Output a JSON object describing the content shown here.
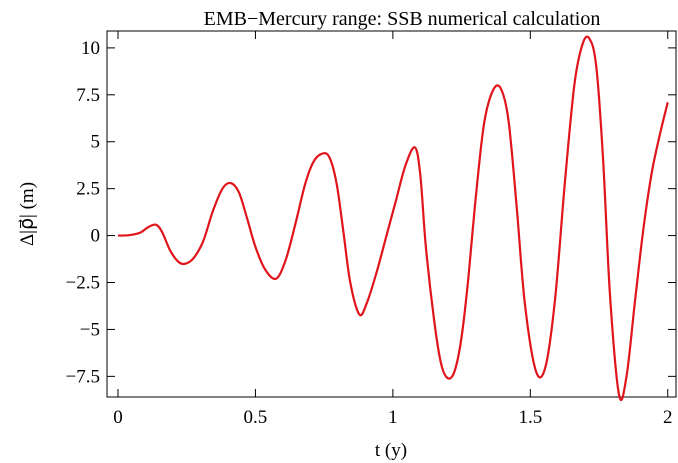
{
  "chart_data": {
    "type": "line",
    "title": "EMB−Mercury range: SSB numerical calculation",
    "xlabel": "t (y)",
    "ylabel": "Δ|ρ⃗| (m)",
    "xlim": [
      -0.04,
      2.03
    ],
    "ylim": [
      -8.6,
      10.9
    ],
    "grid": false,
    "legend": "none",
    "line_color": "#e0141b",
    "x_ticks": [
      {
        "value": 0,
        "label": "0"
      },
      {
        "value": 0.5,
        "label": "0.5"
      },
      {
        "value": 1,
        "label": "1"
      },
      {
        "value": 1.5,
        "label": "1.5"
      },
      {
        "value": 2,
        "label": "2"
      }
    ],
    "y_ticks": [
      {
        "value": -7.5,
        "label": "−7.5"
      },
      {
        "value": -5,
        "label": "−5"
      },
      {
        "value": -2.5,
        "label": "−2.5"
      },
      {
        "value": 0,
        "label": "0"
      },
      {
        "value": 2.5,
        "label": "2.5"
      },
      {
        "value": 5,
        "label": "5"
      },
      {
        "value": 7.5,
        "label": "7.5"
      },
      {
        "value": 10,
        "label": "10"
      }
    ],
    "series": [
      {
        "x": [
          0,
          0.04,
          0.08,
          0.11,
          0.138,
          0.16,
          0.19,
          0.22,
          0.245,
          0.275,
          0.31,
          0.345,
          0.38,
          0.41,
          0.44,
          0.47,
          0.5,
          0.535,
          0.575,
          0.61,
          0.645,
          0.68,
          0.71,
          0.74,
          0.768,
          0.795,
          0.82,
          0.845,
          0.878,
          0.905,
          0.94,
          0.975,
          1.01,
          1.045,
          1.08,
          1.1,
          1.12,
          1.15,
          1.175,
          1.2,
          1.225,
          1.25,
          1.275,
          1.3,
          1.33,
          1.36,
          1.39,
          1.42,
          1.45,
          1.48,
          1.52,
          1.555,
          1.59,
          1.625,
          1.66,
          1.69,
          1.715,
          1.74,
          1.765,
          1.79,
          1.823,
          1.85,
          1.88,
          1.91,
          1.94,
          1.97,
          2.0
        ],
        "y": [
          0,
          0.02,
          0.15,
          0.45,
          0.58,
          0.2,
          -0.8,
          -1.4,
          -1.5,
          -1.2,
          -0.3,
          1.3,
          2.5,
          2.8,
          2.3,
          0.9,
          -0.6,
          -1.8,
          -2.3,
          -1.3,
          0.6,
          2.7,
          3.9,
          4.35,
          4.2,
          2.8,
          0.2,
          -2.5,
          -4.2,
          -3.6,
          -2.0,
          -0.1,
          1.8,
          3.7,
          4.7,
          3.2,
          -0.6,
          -4.5,
          -6.8,
          -7.6,
          -7.2,
          -5.4,
          -2.2,
          1.8,
          5.8,
          7.6,
          7.9,
          6.2,
          1.6,
          -3.6,
          -7.2,
          -7.0,
          -3.4,
          2.7,
          8.0,
          10.2,
          10.5,
          9.0,
          4.0,
          -3.2,
          -8.5,
          -7.5,
          -3.6,
          0.2,
          3.2,
          5.3,
          7.1
        ]
      }
    ]
  }
}
